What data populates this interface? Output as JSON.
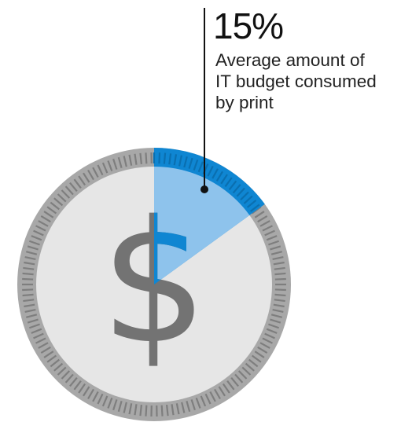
{
  "chart_data": {
    "type": "pie",
    "title": "",
    "value_label": "15%",
    "slices": [
      {
        "label": "Average amount of IT budget consumed by print",
        "value": 15
      },
      {
        "label": "",
        "value": 85
      }
    ]
  },
  "caption_lines": [
    "Average amount of",
    "IT budget consumed",
    "by print"
  ],
  "center_icon": "dollar-sign-icon",
  "colors": {
    "coin_face": "#e6e6e6",
    "coin_rim": "#a8a8a8",
    "rim_ticks": "#7e7e7e",
    "highlight_slice": "#8ec3ec",
    "highlight_rim": "#0f86d2",
    "dollar": "#737373",
    "leader_line": "#111111"
  }
}
